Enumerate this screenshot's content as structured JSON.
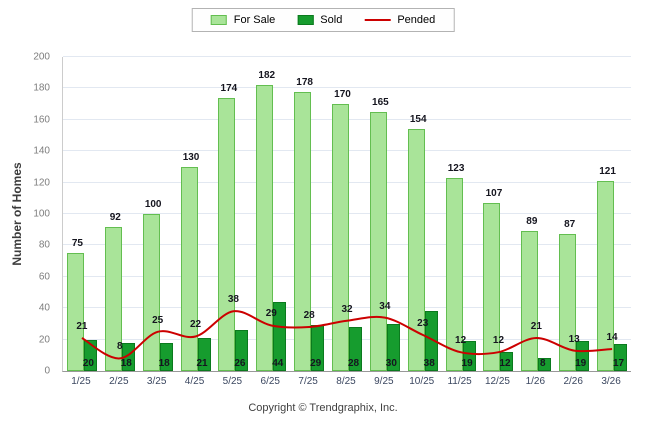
{
  "footer": {
    "copyright": "Copyright © Trendgraphix, Inc."
  },
  "chart_data": {
    "type": "bar",
    "title": "",
    "categories": [
      "1/25",
      "2/25",
      "3/25",
      "4/25",
      "5/25",
      "6/25",
      "7/25",
      "8/25",
      "9/25",
      "10/25",
      "11/25",
      "12/25",
      "1/26",
      "2/26",
      "3/26"
    ],
    "series": [
      {
        "name": "For Sale",
        "type": "bar",
        "color": "#A9E499",
        "border_color": "#63BE50",
        "values": [
          75,
          92,
          100,
          130,
          174,
          182,
          178,
          170,
          165,
          154,
          123,
          107,
          89,
          87,
          121
        ]
      },
      {
        "name": "Sold",
        "type": "bar",
        "color": "#169C2E",
        "border_color": "#0B7A1E",
        "values": [
          20,
          18,
          18,
          21,
          26,
          44,
          29,
          28,
          30,
          38,
          19,
          12,
          8,
          19,
          17
        ]
      },
      {
        "name": "Pended",
        "type": "line",
        "color": "#CC0000",
        "values": [
          21,
          8,
          25,
          22,
          38,
          29,
          28,
          32,
          34,
          23,
          12,
          12,
          21,
          13,
          14
        ]
      }
    ],
    "xlabel": "",
    "ylabel": "Number of Homes",
    "ylim": [
      0,
      200
    ],
    "yticks": [
      0,
      20,
      40,
      60,
      80,
      100,
      120,
      140,
      160,
      180,
      200
    ],
    "grid": true,
    "legend_position": "top"
  }
}
